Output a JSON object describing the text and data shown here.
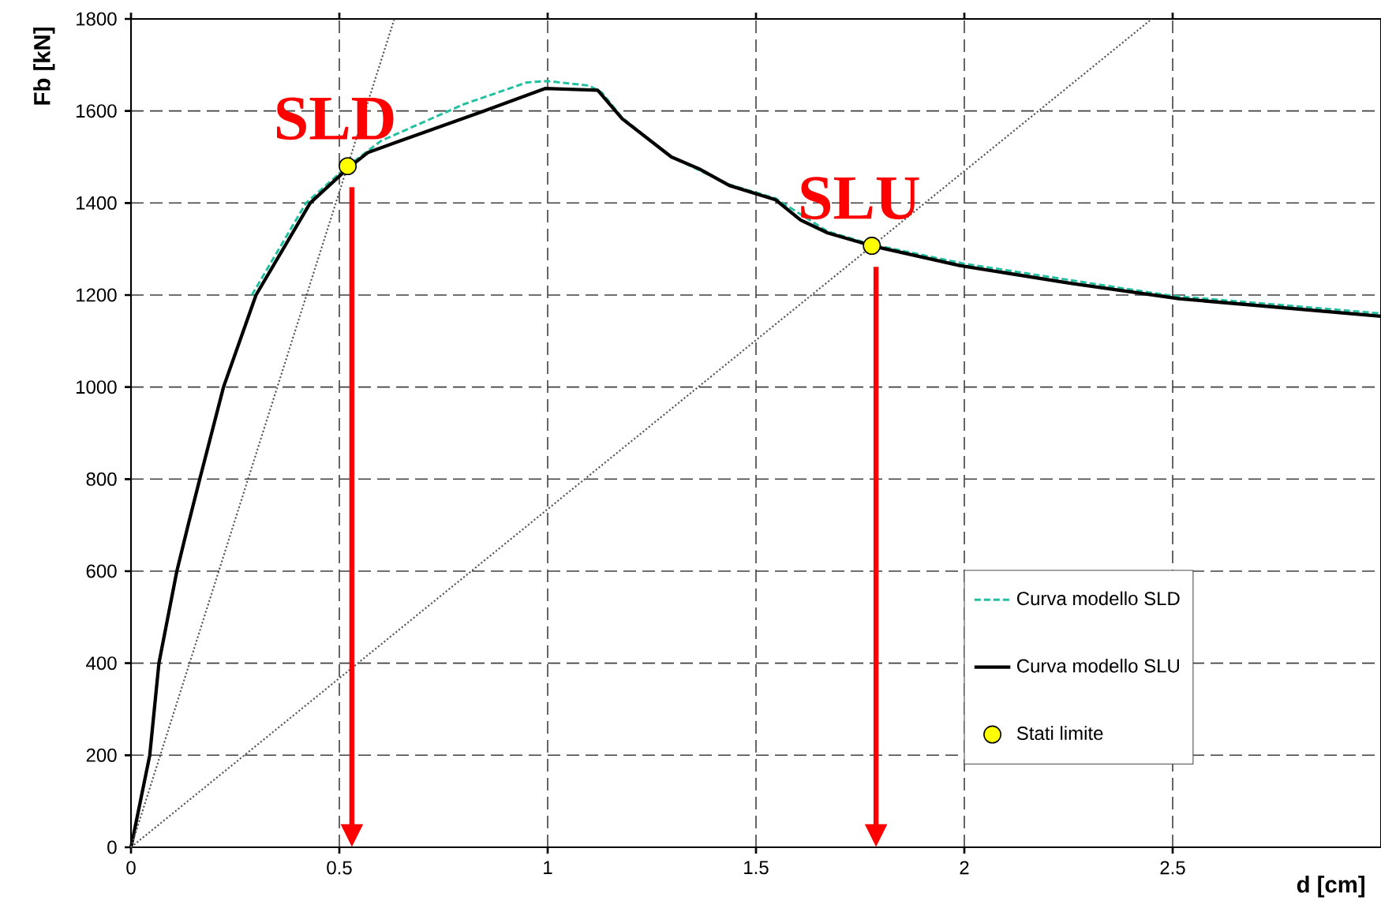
{
  "chart_data": {
    "type": "line",
    "xlabel": "d [cm]",
    "ylabel": "Fb [kN]",
    "xlim": [
      0,
      3
    ],
    "ylim": [
      0,
      1800
    ],
    "xticks": [
      0,
      0.5,
      1,
      1.5,
      2,
      2.5
    ],
    "yticks": [
      0,
      200,
      400,
      600,
      800,
      1000,
      1200,
      1400,
      1600,
      1800
    ],
    "grid": true,
    "legend": "bottom right",
    "series": [
      {
        "name": "Curva modello SLD",
        "color": "#20c0a0",
        "line_style": "dashed",
        "marker": "none",
        "x": [
          0.29,
          0.42,
          0.52,
          0.6,
          0.8,
          0.95,
          1.0,
          1.1,
          1.13,
          1.179,
          1.297,
          1.436,
          1.547,
          1.672,
          1.778,
          2.0,
          2.5,
          3.0
        ],
        "values": [
          1200,
          1400,
          1480,
          1535,
          1615,
          1662,
          1665,
          1655,
          1640,
          1585,
          1500,
          1440,
          1410,
          1338,
          1310,
          1268,
          1198,
          1160
        ]
      },
      {
        "name": "Curva modello SLU",
        "color": "#000000",
        "line_style": "solid",
        "marker": "none",
        "x": [
          0,
          0.045,
          0.067,
          0.11,
          0.137,
          0.165,
          0.222,
          0.3,
          0.43,
          0.52,
          0.569,
          0.847,
          0.995,
          1.12,
          1.179,
          1.297,
          1.364,
          1.436,
          1.547,
          1.607,
          1.672,
          1.778,
          1.989,
          2.252,
          2.515,
          3.0
        ],
        "values": [
          0,
          200,
          400,
          600,
          700,
          800,
          1000,
          1200,
          1400,
          1475,
          1510,
          1600,
          1649,
          1645,
          1583,
          1500,
          1474,
          1438,
          1407,
          1363,
          1335,
          1307,
          1264,
          1226,
          1192,
          1154
        ]
      },
      {
        "type": "line",
        "color": "#555555",
        "line_style": "dotted",
        "marker": "none",
        "x": [
          0,
          0.632
        ],
        "values": [
          0,
          1800
        ]
      },
      {
        "type": "line",
        "color": "#555555",
        "line_style": "dotted",
        "marker": "none",
        "x": [
          0,
          2.45
        ],
        "values": [
          0,
          1800
        ]
      },
      {
        "name": "Stati limite",
        "type": "scatter",
        "color": "#ffff00",
        "marker": "circle",
        "x": [
          0.52,
          1.778
        ],
        "values": [
          1480,
          1307
        ]
      }
    ],
    "annotations": [
      {
        "text": "SLD",
        "x": 0.52,
        "y": 1480
      },
      {
        "text": "SLU",
        "x": 1.778,
        "y": 1307
      }
    ]
  }
}
